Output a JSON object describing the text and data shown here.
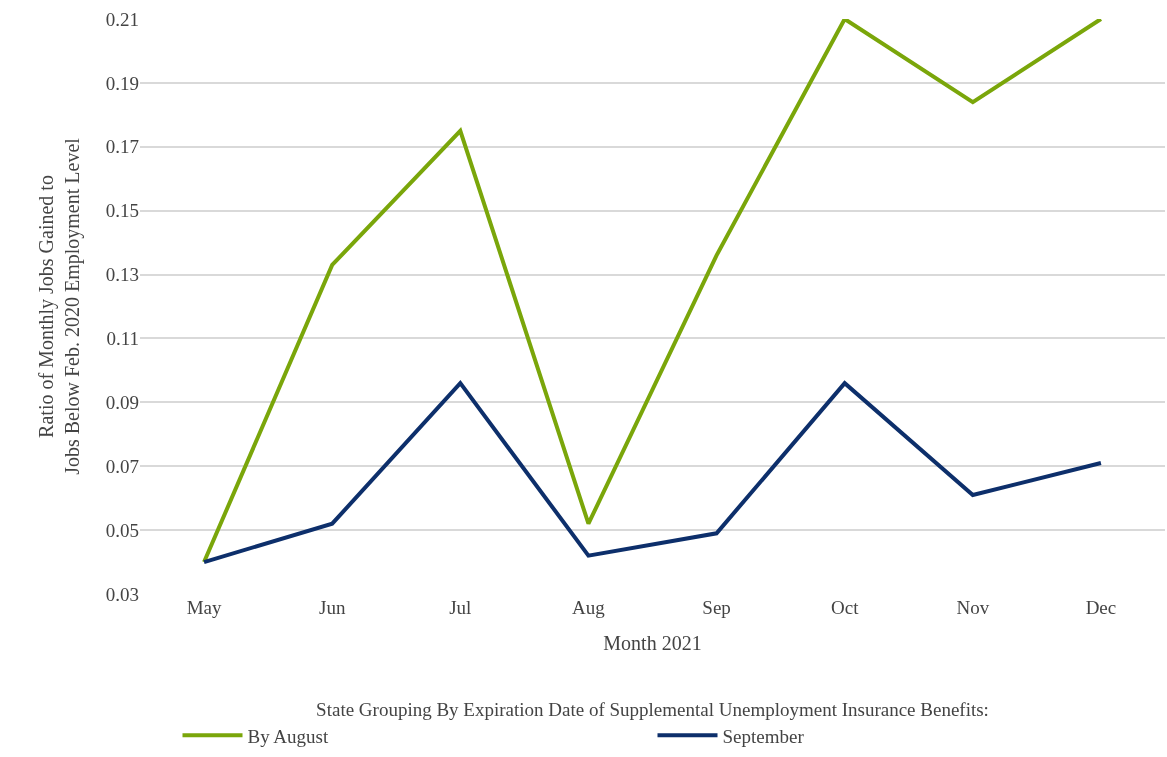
{
  "chart_data": {
    "type": "line",
    "xlabel": "Month 2021",
    "ylabel": "Ratio of Monthly Jobs Gained to\nJobs Below Feb. 2020 Employment Level",
    "legend_title": "State Grouping By Expiration Date of Supplemental Unemployment Insurance Benefits:",
    "categories": [
      "May",
      "Jun",
      "Jul",
      "Aug",
      "Sep",
      "Oct",
      "Nov",
      "Dec"
    ],
    "series": [
      {
        "name": "By August",
        "color": "#7aa60a",
        "values": [
          0.04,
          0.133,
          0.175,
          0.052,
          0.136,
          0.21,
          0.184,
          0.21
        ]
      },
      {
        "name": "September",
        "color": "#0d2f6b",
        "values": [
          0.04,
          0.052,
          0.096,
          0.042,
          0.049,
          0.096,
          0.061,
          0.071
        ]
      }
    ],
    "ylim": [
      0.03,
      0.21
    ],
    "yticks": [
      0.03,
      0.05,
      0.07,
      0.09,
      0.11,
      0.13,
      0.15,
      0.17,
      0.19,
      0.21
    ],
    "grid": "y",
    "legend": "bottom",
    "marker": "none",
    "line_style": "solid"
  }
}
